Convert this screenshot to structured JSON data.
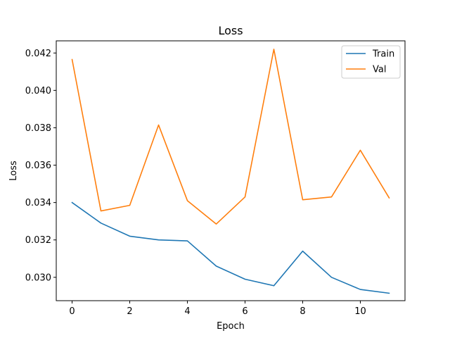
{
  "chart_data": {
    "type": "line",
    "title": "Loss",
    "xlabel": "Epoch",
    "ylabel": "Loss",
    "x": [
      0,
      1,
      2,
      3,
      4,
      5,
      6,
      7,
      8,
      9,
      10,
      11
    ],
    "xlim": [
      -0.55,
      11.55
    ],
    "ylim": [
      0.02875,
      0.04265
    ],
    "xticks": [
      0,
      2,
      4,
      6,
      8,
      10
    ],
    "yticks": [
      0.03,
      0.032,
      0.034,
      0.036,
      0.038,
      0.04,
      0.042
    ],
    "xtick_labels": [
      "0",
      "2",
      "4",
      "6",
      "8",
      "10"
    ],
    "ytick_labels": [
      "0.030",
      "0.032",
      "0.034",
      "0.036",
      "0.038",
      "0.040",
      "0.042"
    ],
    "grid": false,
    "legend_position": "top-right",
    "series": [
      {
        "name": "Train",
        "color": "#1f77b4",
        "values": [
          0.034,
          0.0329,
          0.0322,
          0.032,
          0.03195,
          0.0306,
          0.0299,
          0.02955,
          0.0314,
          0.03,
          0.02935,
          0.02915
        ]
      },
      {
        "name": "Val",
        "color": "#ff7f0e",
        "values": [
          0.04165,
          0.03355,
          0.03385,
          0.03815,
          0.0341,
          0.03285,
          0.0343,
          0.0422,
          0.03415,
          0.0343,
          0.0368,
          0.03425
        ]
      }
    ]
  }
}
